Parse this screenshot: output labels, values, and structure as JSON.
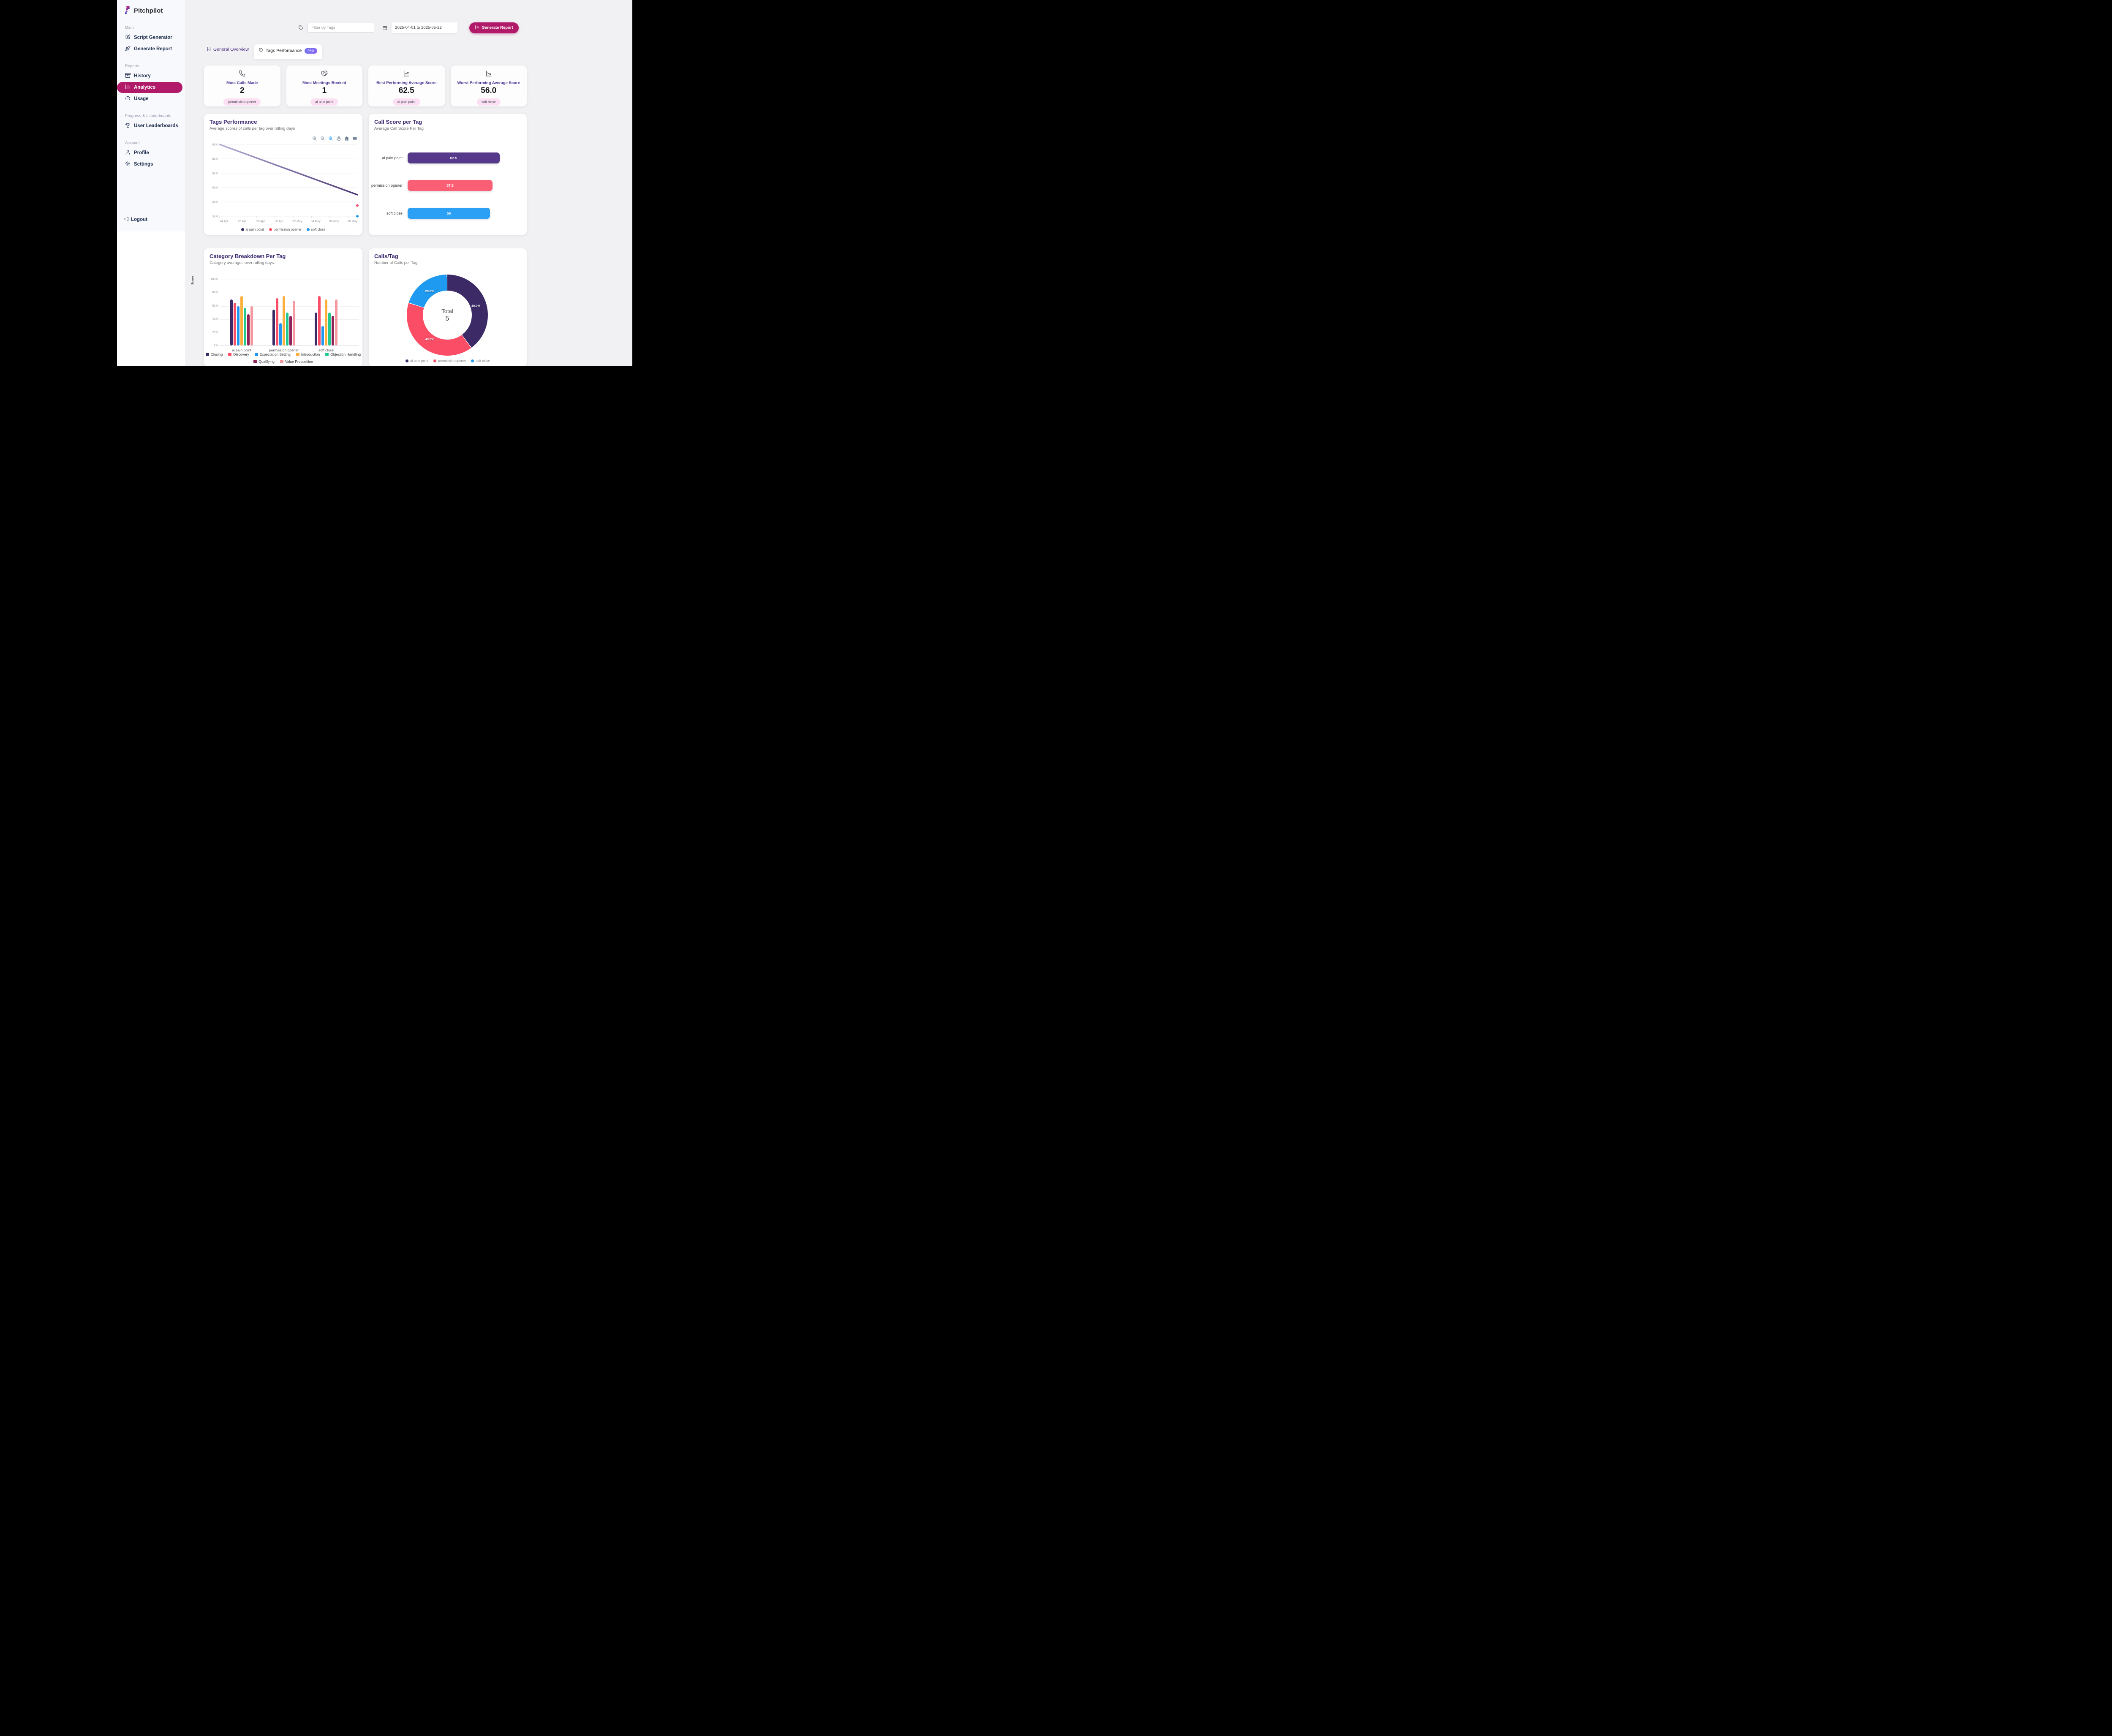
{
  "sidebar": {
    "logo": {
      "icon": "pitchpilot-logo-icon",
      "text": "Pitchpilot"
    },
    "sections": [
      {
        "label": "Main",
        "items": [
          {
            "icon": "edit-icon",
            "label": "Script Generator"
          },
          {
            "icon": "rocket-icon",
            "label": "Generate Report"
          }
        ]
      },
      {
        "label": "Reports",
        "items": [
          {
            "icon": "archive-icon",
            "label": "History"
          },
          {
            "icon": "bar-chart-icon",
            "label": "Analytics",
            "active": true
          },
          {
            "icon": "gauge-icon",
            "label": "Usage"
          }
        ]
      },
      {
        "label": "Progress & Leaderboards",
        "items": [
          {
            "icon": "trophy-icon",
            "label": "User Leaderboards"
          }
        ]
      },
      {
        "label": "Account",
        "items": [
          {
            "icon": "user-icon",
            "label": "Profile"
          },
          {
            "icon": "gear-icon",
            "label": "Settings"
          }
        ]
      }
    ],
    "logout": {
      "icon": "logout-icon",
      "label": "Logout"
    },
    "active_color": "#b01a69"
  },
  "topbar": {
    "filter": {
      "icon": "tag-icon",
      "placeholder": "Filter by Tags"
    },
    "date_range": {
      "icon": "calendar-icon",
      "value": "2025-04-01 to 2025-05-22"
    },
    "generate_button": {
      "icon": "bar-chart-icon",
      "label": "Generate Report",
      "bg": "#b01a69"
    }
  },
  "tabs": [
    {
      "icon": "bookmark-icon",
      "label": "General Overview",
      "active": false
    },
    {
      "icon": "tag-icon",
      "label": "Tags Performance",
      "badge": "PRO",
      "active": true
    }
  ],
  "stat_cards": [
    {
      "icon": "phone-icon",
      "title": "Most Calls Made",
      "value": "2",
      "tag": "permission opener"
    },
    {
      "icon": "handshake-icon",
      "title": "Most Meetings Booked",
      "value": "1",
      "tag": "ai pain point"
    },
    {
      "icon": "trend-up-icon",
      "title": "Best Performing Average Score",
      "value": "62.5",
      "tag": "ai pain point"
    },
    {
      "icon": "trend-down-icon",
      "title": "Worst Performing Average Score",
      "value": "56.0",
      "tag": "soft close"
    }
  ],
  "chart_data": [
    {
      "type": "line",
      "title": "Tags Performance",
      "subtitle": "Average scores of calls per tag over rolling days",
      "toolbar": [
        "zoom-in-icon",
        "zoom-out-icon",
        "selection-zoom-icon",
        "pan-icon",
        "home-icon",
        "menu-icon"
      ],
      "ylim": [
        56,
        66
      ],
      "yticks": [
        {
          "v": 66,
          "label": "66.0"
        },
        {
          "v": 64,
          "label": "64.0"
        },
        {
          "v": 62,
          "label": "62.0"
        },
        {
          "v": 60,
          "label": "60.0"
        },
        {
          "v": 58,
          "label": "58.0"
        },
        {
          "v": 56,
          "label": "56.0"
        }
      ],
      "xdomain": [
        0,
        15
      ],
      "xticks": [
        {
          "d": 0,
          "label": "24 Apr"
        },
        {
          "d": 2,
          "label": "26 Apr"
        },
        {
          "d": 4,
          "label": "28 Apr"
        },
        {
          "d": 6,
          "label": "30 Apr"
        },
        {
          "d": 8,
          "label": "02 May"
        },
        {
          "d": 10,
          "label": "04 May"
        },
        {
          "d": 12,
          "label": "06 May"
        },
        {
          "d": 14,
          "label": "08 May"
        }
      ],
      "series": [
        {
          "name": "ai pain point",
          "color": "#3b2a66",
          "draw": "line",
          "gradient": [
            "#b9aed8",
            "#4a3878"
          ],
          "points": [
            [
              0,
              66
            ],
            [
              15,
              59
            ]
          ]
        },
        {
          "name": "permission opener",
          "color": "#fb4d66",
          "draw": "point",
          "points": [
            [
              15,
              57.5
            ]
          ]
        },
        {
          "name": "soft close",
          "color": "#1e9af0",
          "draw": "point",
          "points": [
            [
              15,
              56
            ]
          ]
        }
      ],
      "legend_position": "bottom",
      "grid": true
    },
    {
      "type": "hbar",
      "title": "Call Score per Tag",
      "subtitle": "Average Call Score Per Tag",
      "bars": [
        {
          "label": "ai pain point",
          "value": 62.5,
          "display": "62.5",
          "color": "#56398b"
        },
        {
          "label": "permission opener",
          "value": 57.5,
          "display": "57.5",
          "color": "#fb5f75"
        },
        {
          "label": "soft close",
          "value": 56,
          "display": "56",
          "color": "#2ba0f5"
        }
      ],
      "scale_max": 62.5
    },
    {
      "type": "bar",
      "title": "Category Breakdown Per Tag",
      "subtitle": "Category averages over rolling days.",
      "ylabel": "Score",
      "ylim": [
        0,
        100
      ],
      "yticks": [
        {
          "v": 100,
          "label": "100.0"
        },
        {
          "v": 80,
          "label": "80.0"
        },
        {
          "v": 60,
          "label": "60.0"
        },
        {
          "v": 40,
          "label": "40.0"
        },
        {
          "v": 20,
          "label": "20.0"
        },
        {
          "v": 0,
          "label": "0.0"
        }
      ],
      "categories": [
        "ai pain point",
        "permission opener",
        "soft close"
      ],
      "series": [
        {
          "name": "Closing",
          "color": "#3b2a66",
          "values": [
            69.5,
            54,
            49.5
          ]
        },
        {
          "name": "Discovery",
          "color": "#fb4d66",
          "values": [
            64.5,
            71.5,
            74.5
          ]
        },
        {
          "name": "Expectation Setting",
          "color": "#2196f3",
          "values": [
            59.5,
            34,
            29.5
          ]
        },
        {
          "name": "Introduction",
          "color": "#fbaf3c",
          "values": [
            74.5,
            74.5,
            69.5
          ]
        },
        {
          "name": "Objection Handling",
          "color": "#22c98e",
          "values": [
            56.5,
            49.5,
            49.5
          ]
        },
        {
          "name": "Qualifying",
          "color": "#8e2158",
          "values": [
            47,
            44.5,
            44.5
          ]
        },
        {
          "name": "Value Proposition",
          "color": "#f698a0",
          "values": [
            59.5,
            67.5,
            69.5
          ]
        }
      ],
      "legend_position": "bottom",
      "grid": true
    },
    {
      "type": "donut",
      "title": "Calls/Tag",
      "subtitle": "Number of Calls per Tag",
      "center": {
        "label": "Total",
        "value": "5"
      },
      "slices": [
        {
          "name": "ai pain point",
          "pct": 40,
          "label": "40.0%",
          "color": "#3b2a66"
        },
        {
          "name": "permission opener",
          "pct": 40,
          "label": "40.0%",
          "color": "#fb4d66"
        },
        {
          "name": "soft close",
          "pct": 20,
          "label": "20.0%",
          "color": "#1e9af0"
        }
      ],
      "legend_position": "bottom"
    }
  ]
}
